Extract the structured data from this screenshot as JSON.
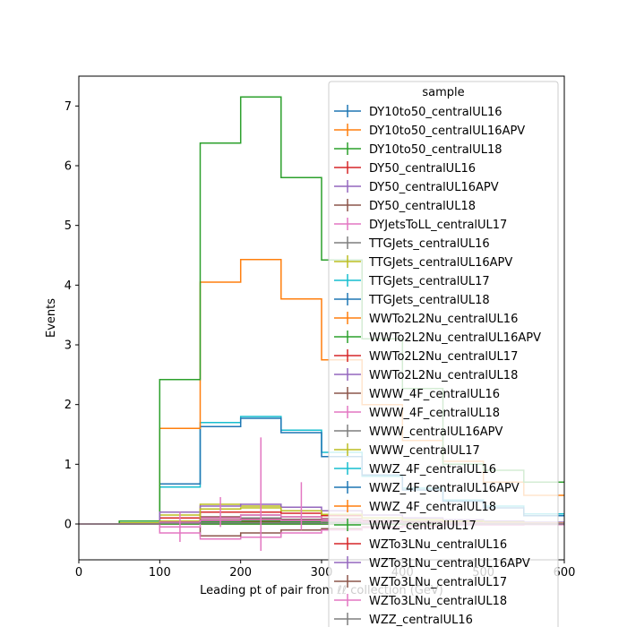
{
  "chart_data": {
    "type": "line",
    "style": "step-histogram",
    "xlabel": "Leading pt of pair from ℓℓ collection (GeV)",
    "ylabel": "Events",
    "xlim": [
      0,
      600
    ],
    "ylim": [
      -0.6,
      7.5
    ],
    "x_ticks": [
      0,
      100,
      200,
      300,
      400,
      500,
      600
    ],
    "y_ticks": [
      0,
      1,
      2,
      3,
      4,
      5,
      6,
      7
    ],
    "bin_edges": [
      0,
      50,
      100,
      150,
      200,
      250,
      300,
      350,
      400,
      450,
      500,
      550,
      600
    ],
    "grid": false,
    "legend": {
      "title": "sample",
      "placement": "right"
    },
    "series": [
      {
        "name": "DY10to50_centralUL16",
        "color": "#1f77b4",
        "values": [
          0,
          0,
          0,
          0,
          0,
          0,
          0,
          0,
          0,
          0,
          0,
          0
        ]
      },
      {
        "name": "DY10to50_centralUL16APV",
        "color": "#ff7f0e",
        "values": [
          0,
          0,
          0,
          0,
          0,
          0,
          0,
          0,
          0,
          0,
          0,
          0
        ]
      },
      {
        "name": "DY10to50_centralUL18",
        "color": "#2ca02c",
        "values": [
          0,
          0,
          0,
          0,
          0,
          0,
          0,
          0,
          0,
          0,
          0,
          0
        ]
      },
      {
        "name": "DY50_centralUL16",
        "color": "#d62728",
        "values": [
          0,
          0,
          0.02,
          0.03,
          0.03,
          0.03,
          0.02,
          0.02,
          0.01,
          0.01,
          0.01,
          0.01
        ]
      },
      {
        "name": "DY50_centralUL16APV",
        "color": "#9467bd",
        "values": [
          0,
          0,
          0.01,
          0.02,
          0.02,
          0.02,
          0.02,
          0.01,
          0.01,
          0.01,
          0,
          0
        ]
      },
      {
        "name": "DY50_centralUL18",
        "color": "#8c564b",
        "values": [
          0,
          0,
          -0.05,
          -0.2,
          -0.15,
          -0.1,
          -0.08,
          -0.05,
          -0.03,
          -0.02,
          -0.01,
          -0.01
        ]
      },
      {
        "name": "DYJetsToLL_centralUL17",
        "color": "#e377c2",
        "values": [
          0,
          0,
          -0.15,
          -0.25,
          -0.22,
          -0.15,
          -0.1,
          -0.06,
          -0.04,
          -0.02,
          -0.02,
          -0.01
        ]
      },
      {
        "name": "TTGJets_centralUL16",
        "color": "#7f7f7f",
        "values": [
          0,
          0,
          0.05,
          0.1,
          0.1,
          0.08,
          0.06,
          0.04,
          0.03,
          0.02,
          0.01,
          0.01
        ]
      },
      {
        "name": "TTGJets_centralUL16APV",
        "color": "#bcbd22",
        "values": [
          0,
          0.02,
          0.15,
          0.33,
          0.3,
          0.22,
          0.15,
          0.1,
          0.07,
          0.05,
          0.03,
          0.02
        ]
      },
      {
        "name": "TTGJets_centralUL17",
        "color": "#17becf",
        "values": [
          0,
          0,
          0.62,
          1.7,
          1.8,
          1.57,
          1.2,
          0.8,
          0.6,
          0.4,
          0.3,
          0.17
        ]
      },
      {
        "name": "TTGJets_centralUL18",
        "color": "#1f77b4",
        "values": [
          0,
          0,
          0.67,
          1.63,
          1.77,
          1.53,
          1.13,
          0.82,
          0.57,
          0.38,
          0.27,
          0.14
        ]
      },
      {
        "name": "WWTo2L2Nu_centralUL16",
        "color": "#ff7f0e",
        "values": [
          0,
          0.05,
          1.6,
          4.05,
          4.43,
          3.77,
          2.75,
          2.0,
          1.4,
          1.05,
          0.7,
          0.48
        ]
      },
      {
        "name": "WWTo2L2Nu_centralUL16APV",
        "color": "#2ca02c",
        "values": [
          0,
          0.05,
          2.42,
          6.38,
          7.15,
          5.8,
          4.42,
          3.1,
          2.27,
          1.0,
          0.9,
          0.7
        ]
      },
      {
        "name": "WWTo2L2Nu_centralUL17",
        "color": "#d62728",
        "values": [
          0,
          0,
          0.1,
          0.2,
          0.2,
          0.18,
          0.14,
          0.1,
          0.07,
          0.05,
          0.03,
          0.02
        ]
      },
      {
        "name": "WWTo2L2Nu_centralUL18",
        "color": "#9467bd",
        "values": [
          0,
          0,
          0.2,
          0.3,
          0.33,
          0.28,
          0.22,
          0.15,
          0.1,
          0.07,
          0.05,
          0.03
        ]
      },
      {
        "name": "WWW_4F_centralUL16",
        "color": "#8c564b",
        "values": [
          0,
          0,
          0.05,
          0.12,
          0.15,
          0.12,
          0.09,
          0.06,
          0.04,
          0.03,
          0.02,
          0.01
        ]
      },
      {
        "name": "WWW_4F_centralUL18",
        "color": "#e377c2",
        "values": [
          0,
          0,
          -0.05,
          0.1,
          0.15,
          0.12,
          0.08,
          0.05,
          0.03,
          0.02,
          0.01,
          0.01
        ]
      },
      {
        "name": "WWW_centralUL16APV",
        "color": "#7f7f7f",
        "values": [
          0,
          0,
          0.03,
          0.06,
          0.07,
          0.06,
          0.05,
          0.03,
          0.02,
          0.01,
          0.01,
          0.01
        ]
      },
      {
        "name": "WWW_centralUL17",
        "color": "#bcbd22",
        "values": [
          0,
          0,
          0.05,
          0.25,
          0.27,
          0.22,
          0.16,
          0.1,
          0.07,
          0.05,
          0.03,
          0.02
        ]
      },
      {
        "name": "WWZ_4F_centralUL16",
        "color": "#17becf",
        "values": [
          0,
          0,
          0.02,
          0.05,
          0.06,
          0.05,
          0.04,
          0.03,
          0.02,
          0.01,
          0.01,
          0.01
        ]
      },
      {
        "name": "WWZ_4F_centralUL16APV",
        "color": "#1f77b4",
        "values": [
          0,
          0,
          0.02,
          0.04,
          0.05,
          0.04,
          0.03,
          0.02,
          0.02,
          0.01,
          0.01,
          0.01
        ]
      },
      {
        "name": "WWZ_4F_centralUL18",
        "color": "#ff7f0e",
        "values": [
          0,
          0,
          0.02,
          0.05,
          0.06,
          0.05,
          0.04,
          0.03,
          0.02,
          0.01,
          0.01,
          0.01
        ]
      },
      {
        "name": "WWZ_centralUL17",
        "color": "#2ca02c",
        "values": [
          0,
          0,
          0.02,
          0.04,
          0.05,
          0.04,
          0.03,
          0.02,
          0.02,
          0.01,
          0.01,
          0.01
        ]
      },
      {
        "name": "WZTo3LNu_centralUL16",
        "color": "#d62728",
        "values": [
          0,
          0,
          0.03,
          0.07,
          0.08,
          0.07,
          0.05,
          0.04,
          0.03,
          0.02,
          0.01,
          0.01
        ]
      },
      {
        "name": "WZTo3LNu_centralUL16APV",
        "color": "#9467bd",
        "values": [
          0,
          0,
          0.03,
          0.06,
          0.07,
          0.06,
          0.05,
          0.03,
          0.02,
          0.02,
          0.01,
          0.01
        ]
      },
      {
        "name": "WZTo3LNu_centralUL17",
        "color": "#8c564b",
        "values": [
          0,
          0,
          0.03,
          0.07,
          0.08,
          0.07,
          0.05,
          0.04,
          0.03,
          0.02,
          0.01,
          0.01
        ]
      },
      {
        "name": "WZTo3LNu_centralUL18",
        "color": "#e377c2",
        "values": [
          0,
          0,
          0.03,
          0.06,
          0.07,
          0.06,
          0.05,
          0.03,
          0.02,
          0.02,
          0.01,
          0.01
        ]
      },
      {
        "name": "WZZ_centralUL16",
        "color": "#7f7f7f",
        "values": [
          0,
          0,
          0.01,
          0.02,
          0.02,
          0.02,
          0.01,
          0.01,
          0.01,
          0,
          0,
          0
        ]
      }
    ],
    "error_markers": [
      {
        "series": "DYJetsToLL_centralUL17",
        "x": 125,
        "y": -0.05,
        "err": 0.25
      },
      {
        "series": "DYJetsToLL_centralUL17",
        "x": 175,
        "y": 0.2,
        "err": 0.25
      },
      {
        "series": "DYJetsToLL_centralUL17",
        "x": 225,
        "y": 0.5,
        "err": 0.95
      },
      {
        "series": "DYJetsToLL_centralUL17",
        "x": 275,
        "y": 0.3,
        "err": 0.4
      }
    ]
  }
}
